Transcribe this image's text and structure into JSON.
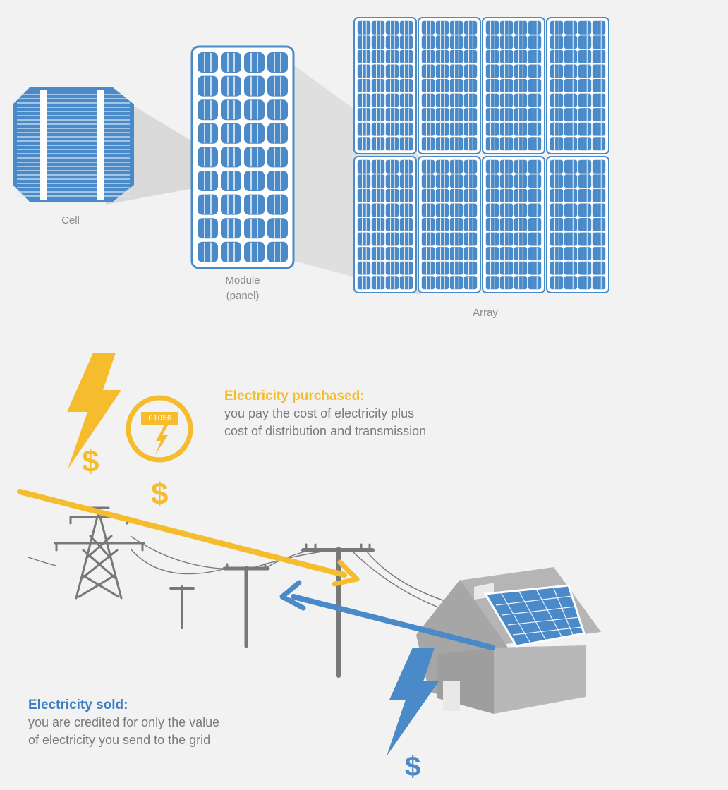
{
  "colors": {
    "blue": "#4a8ac8",
    "blue_dark": "#3d7fc4",
    "yellow": "#f5bc2e",
    "gray_dark": "#787878",
    "gray_house": "#b5b5b5",
    "gray_house_dark": "#9a9a9a",
    "background": "#f2f2f2"
  },
  "solar_hierarchy": {
    "cell_label": "Cell",
    "module_label_line1": "Module",
    "module_label_line2": "(panel)",
    "array_label": "Array"
  },
  "meter": {
    "reading": "01056",
    "icon": "lightning-bolt-icon"
  },
  "purchased": {
    "heading": "Electricity purchased:",
    "line1": "you pay the cost of electricity plus",
    "line2": "cost of distribution and transmission",
    "currency_symbol": "$"
  },
  "sold": {
    "heading": "Electricity sold:",
    "line1": "you are credited for only the value",
    "line2": "of electricity you send to the grid",
    "currency_symbol": "$"
  }
}
